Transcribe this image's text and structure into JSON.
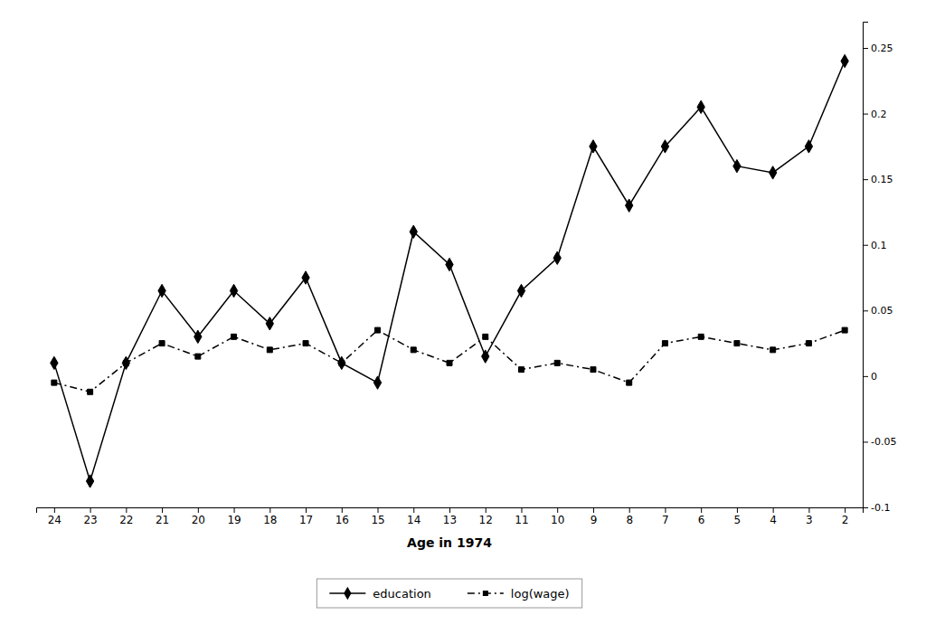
{
  "chart_data": {
    "type": "line",
    "x_label": "Age in 1974",
    "categories": [
      "24",
      "23",
      "22",
      "21",
      "20",
      "19",
      "18",
      "17",
      "16",
      "15",
      "14",
      "13",
      "12",
      "11",
      "10",
      "9",
      "8",
      "7",
      "6",
      "5",
      "4",
      "3",
      "2"
    ],
    "series": [
      {
        "name": "education",
        "color": "#000000",
        "marker": "diamond",
        "line_style": "solid",
        "values": [
          0.01,
          -0.08,
          0.01,
          0.065,
          0.03,
          0.065,
          0.04,
          0.075,
          0.01,
          -0.005,
          0.11,
          0.085,
          0.015,
          0.065,
          0.09,
          0.175,
          0.13,
          0.175,
          0.205,
          0.16,
          0.155,
          0.175,
          0.24
        ]
      },
      {
        "name": "log(wage)",
        "color": "#000000",
        "marker": "square",
        "line_style": "dashdot",
        "values": [
          -0.005,
          -0.012,
          0.01,
          0.025,
          0.015,
          0.03,
          0.02,
          0.025,
          0.01,
          0.035,
          0.02,
          0.01,
          0.03,
          0.005,
          0.01,
          0.005,
          -0.005,
          0.025,
          0.03,
          0.025,
          0.02,
          0.025,
          0.035
        ]
      }
    ],
    "ylim": [
      -0.1,
      0.27
    ],
    "yticks": [
      -0.1,
      -0.05,
      0,
      0.05,
      0.1,
      0.15,
      0.2,
      0.25
    ],
    "grid": false,
    "legend": "bottom"
  }
}
